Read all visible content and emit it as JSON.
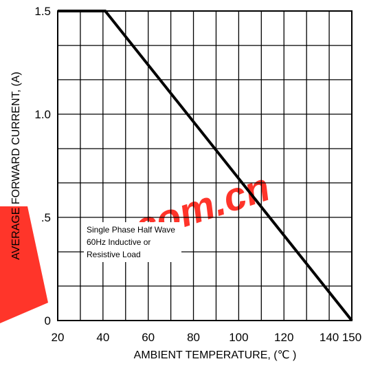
{
  "chart_data": {
    "type": "line",
    "xlabel": "AMBIENT TEMPERATURE, (℃ )",
    "ylabel": "AVERAGE FORWARD CURRENT, (A)",
    "x_ticks": [
      20,
      40,
      60,
      80,
      100,
      120,
      140,
      150
    ],
    "x_tick_labels": [
      "20",
      "40",
      "60",
      "80",
      "100",
      "120",
      "140",
      "150"
    ],
    "y_ticks": [
      0,
      0.5,
      1.0,
      1.5
    ],
    "y_tick_labels": [
      "0",
      ".5",
      "1.0",
      "1.5"
    ],
    "xlim": [
      20,
      150
    ],
    "ylim": [
      0,
      1.5
    ],
    "x_grid": [
      20,
      30,
      40,
      50,
      60,
      70,
      80,
      90,
      100,
      110,
      120,
      130,
      140,
      150
    ],
    "y_grid": [
      0,
      0.167,
      0.333,
      0.5,
      0.667,
      0.833,
      1.0,
      1.167,
      1.333,
      1.5
    ],
    "grid": true,
    "series": [
      {
        "x": [
          20,
          41,
          150
        ],
        "y": [
          1.5,
          1.5,
          0
        ]
      }
    ],
    "annotation": {
      "lines": [
        "Single Phase Half Wave",
        "60Hz Inductive or",
        "Resistive Load"
      ]
    },
    "watermark": {
      "text": ".com.cn",
      "color": "#ff2a1f"
    },
    "colors": {
      "line": "#000000",
      "grid": "#000000",
      "watermark": "#ff2a1f"
    }
  }
}
